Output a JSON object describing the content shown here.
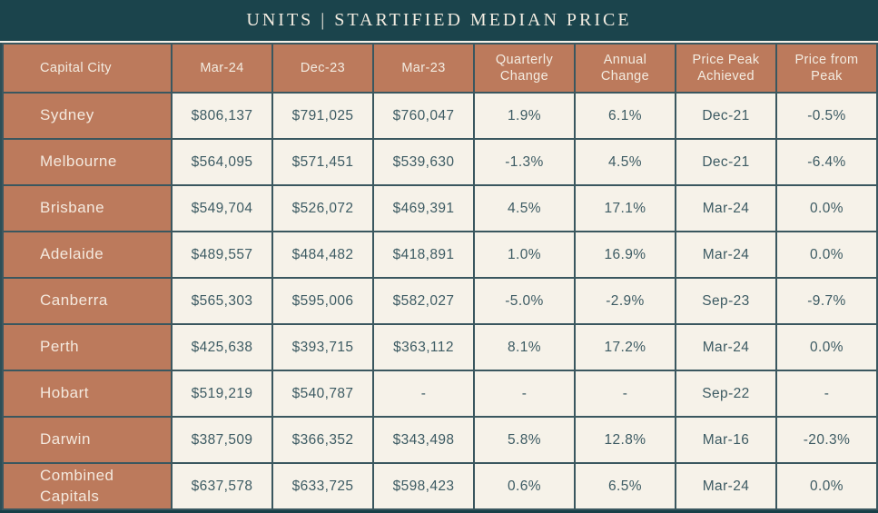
{
  "title_bar": {
    "title": "UNITS | STARTIFIED MEDIAN PRICE"
  },
  "colors": {
    "title_bar_background": "#1b444c",
    "header_terracotta": "#bc7a5c",
    "cell_cream": "#f6f2e9",
    "cell_text_teal": "#3d5b63",
    "border_teal": "#3a575f",
    "header_text": "#f3ece1"
  },
  "chart_data": {
    "type": "table",
    "title": "UNITS | STARTIFIED MEDIAN PRICE",
    "columns": [
      "Capital City",
      "Mar-24",
      "Dec-23",
      "Mar-23",
      "Quarterly Change",
      "Annual Change",
      "Price Peak Achieved",
      "Price from Peak"
    ],
    "rows": [
      [
        "Sydney",
        "$806,137",
        "$791,025",
        "$760,047",
        "1.9%",
        "6.1%",
        "Dec-21",
        "-0.5%"
      ],
      [
        "Melbourne",
        "$564,095",
        "$571,451",
        "$539,630",
        "-1.3%",
        "4.5%",
        "Dec-21",
        "-6.4%"
      ],
      [
        "Brisbane",
        "$549,704",
        "$526,072",
        "$469,391",
        "4.5%",
        "17.1%",
        "Mar-24",
        "0.0%"
      ],
      [
        "Adelaide",
        "$489,557",
        "$484,482",
        "$418,891",
        "1.0%",
        "16.9%",
        "Mar-24",
        "0.0%"
      ],
      [
        "Canberra",
        "$565,303",
        "$595,006",
        "$582,027",
        "-5.0%",
        "-2.9%",
        "Sep-23",
        "-9.7%"
      ],
      [
        "Perth",
        "$425,638",
        "$393,715",
        "$363,112",
        "8.1%",
        "17.2%",
        "Mar-24",
        "0.0%"
      ],
      [
        "Hobart",
        "$519,219",
        "$540,787",
        "-",
        "-",
        "-",
        "Sep-22",
        "-"
      ],
      [
        "Darwin",
        "$387,509",
        "$366,352",
        "$343,498",
        "5.8%",
        "12.8%",
        "Mar-16",
        "-20.3%"
      ],
      [
        "Combined Capitals",
        "$637,578",
        "$633,725",
        "$598,423",
        "0.6%",
        "6.5%",
        "Mar-24",
        "0.0%"
      ]
    ]
  }
}
